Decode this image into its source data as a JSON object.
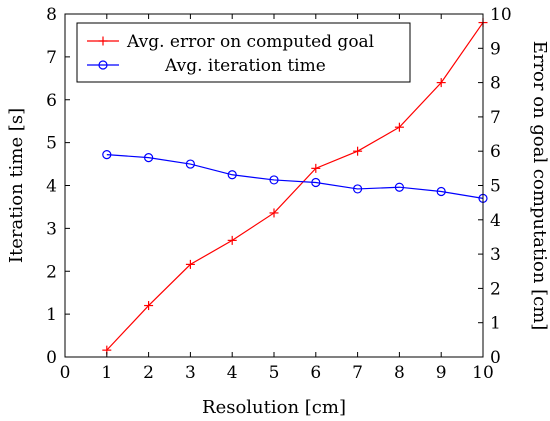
{
  "chart_data": {
    "type": "line",
    "title": "",
    "xlabel": "Resolution [cm]",
    "ylabel_left": "Iteration time [s]",
    "ylabel_right": "Error on goal computation [cm]",
    "xlim": [
      0,
      10
    ],
    "ylim_left": [
      0,
      8
    ],
    "ylim_right": [
      0,
      10
    ],
    "x_ticks": [
      "0",
      "1",
      "2",
      "3",
      "4",
      "5",
      "6",
      "7",
      "8",
      "9",
      "10"
    ],
    "y_left_ticks": [
      "0",
      "1",
      "2",
      "3",
      "4",
      "5",
      "6",
      "7",
      "8"
    ],
    "y_right_ticks": [
      "0",
      "1",
      "2",
      "3",
      "4",
      "5",
      "6",
      "7",
      "8",
      "9",
      "10"
    ],
    "grid": false,
    "legend_position": "top-left",
    "series": [
      {
        "name": "Avg. error on computed goal",
        "axis": "right",
        "color": "#ff0000",
        "marker": "plus",
        "x": [
          1,
          2,
          3,
          4,
          5,
          6,
          7,
          8,
          9,
          10
        ],
        "y": [
          0.2,
          1.5,
          2.7,
          3.4,
          4.2,
          5.5,
          6.0,
          6.7,
          8.0,
          9.75
        ]
      },
      {
        "name": "Avg. iteration time",
        "axis": "left",
        "color": "#0000ff",
        "marker": "circle",
        "x": [
          1,
          2,
          3,
          4,
          5,
          6,
          7,
          8,
          9,
          10
        ],
        "y": [
          4.72,
          4.65,
          4.5,
          4.25,
          4.13,
          4.07,
          3.92,
          3.96,
          3.86,
          3.7
        ]
      }
    ]
  }
}
